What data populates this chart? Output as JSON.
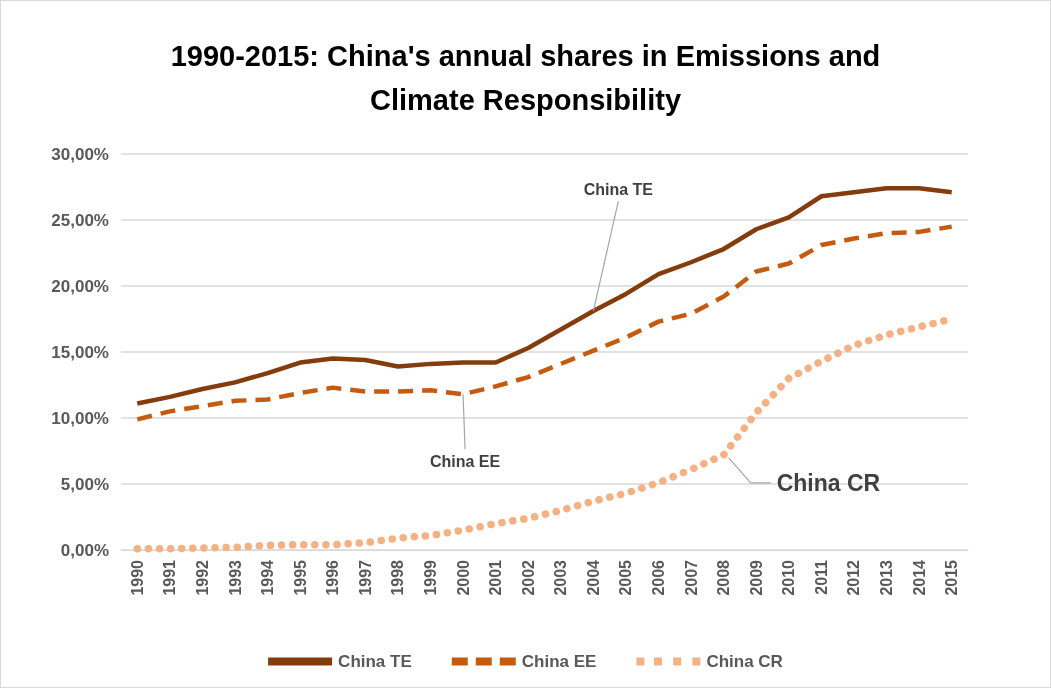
{
  "chart_data": {
    "type": "line",
    "title": "1990-2015: China's annual shares in Emissions and\nClimate Responsibility",
    "categories": [
      "1990",
      "1991",
      "1992",
      "1993",
      "1994",
      "1995",
      "1996",
      "1997",
      "1998",
      "1999",
      "2000",
      "2001",
      "2002",
      "2003",
      "2004",
      "2005",
      "2006",
      "2007",
      "2008",
      "2009",
      "2010",
      "2011",
      "2012",
      "2013",
      "2014",
      "2015"
    ],
    "series": [
      {
        "name": "China TE",
        "color": "#843c0c",
        "line_style": "solid",
        "values": [
          11.1,
          11.6,
          12.2,
          12.7,
          13.4,
          14.2,
          14.5,
          14.4,
          13.9,
          14.1,
          14.2,
          14.2,
          15.3,
          16.7,
          18.1,
          19.4,
          20.9,
          21.8,
          22.8,
          24.3,
          25.2,
          26.8,
          27.1,
          27.4,
          27.4,
          27.1
        ]
      },
      {
        "name": "China EE",
        "color": "#c55a11",
        "line_style": "dashed",
        "values": [
          9.9,
          10.5,
          10.9,
          11.3,
          11.4,
          11.9,
          12.3,
          12.0,
          12.0,
          12.1,
          11.8,
          12.4,
          13.1,
          14.1,
          15.1,
          16.1,
          17.3,
          17.9,
          19.2,
          21.1,
          21.7,
          23.1,
          23.6,
          24.0,
          24.1,
          24.5
        ]
      },
      {
        "name": "China CR",
        "color": "#f4b183",
        "line_style": "dotted",
        "values": [
          0.1,
          0.1,
          0.15,
          0.2,
          0.35,
          0.4,
          0.4,
          0.55,
          0.9,
          1.1,
          1.5,
          2.0,
          2.4,
          3.0,
          3.7,
          4.3,
          5.1,
          6.1,
          7.2,
          10.4,
          13.0,
          14.3,
          15.5,
          16.3,
          16.9,
          17.5
        ]
      }
    ],
    "ylim": [
      0,
      30
    ],
    "yticks": [
      {
        "value": 0,
        "label": "0,00%"
      },
      {
        "value": 5,
        "label": "5,00%"
      },
      {
        "value": 10,
        "label": "10,00%"
      },
      {
        "value": 15,
        "label": "15,00%"
      },
      {
        "value": 20,
        "label": "20,00%"
      },
      {
        "value": 25,
        "label": "25,00%"
      },
      {
        "value": 30,
        "label": "30,00%"
      }
    ],
    "grid": "y",
    "legend": "bottom",
    "marker": "none",
    "annotations": [
      {
        "text": "China TE",
        "x": "2004",
        "y": 18.1
      },
      {
        "text": "China EE",
        "x": "2000",
        "y": 11.8
      },
      {
        "text": "China CR",
        "x": "2008",
        "y": 7.2
      }
    ]
  }
}
